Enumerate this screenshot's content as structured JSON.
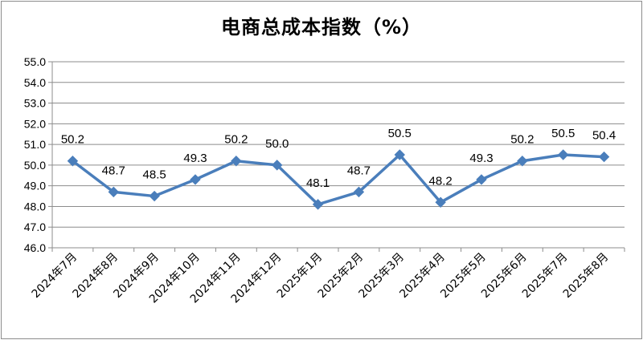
{
  "chart_data": {
    "type": "line",
    "title": "电商总成本指数（%）",
    "categories": [
      "2024年7月",
      "2024年8月",
      "2024年9月",
      "2024年10月",
      "2024年11月",
      "2024年12月",
      "2025年1月",
      "2025年2月",
      "2025年3月",
      "2025年4月",
      "2025年5月",
      "2025年6月",
      "2025年7月",
      "2025年8月"
    ],
    "series": [
      {
        "values": [
          50.2,
          48.7,
          48.5,
          49.3,
          50.2,
          50.0,
          48.1,
          48.7,
          50.5,
          48.2,
          49.3,
          50.2,
          50.5,
          50.4
        ],
        "labels": [
          "50.2",
          "48.7",
          "48.5",
          "49.3",
          "50.2",
          "50.0",
          "48.1",
          "48.7",
          "50.5",
          "48.2",
          "49.3",
          "50.2",
          "50.5",
          "50.4"
        ]
      }
    ],
    "yticks": [
      "46.0",
      "47.0",
      "48.0",
      "49.0",
      "50.0",
      "51.0",
      "52.0",
      "53.0",
      "54.0",
      "55.0"
    ],
    "ylim": [
      46,
      55
    ],
    "grid": true,
    "color": "#4a7ebb"
  }
}
